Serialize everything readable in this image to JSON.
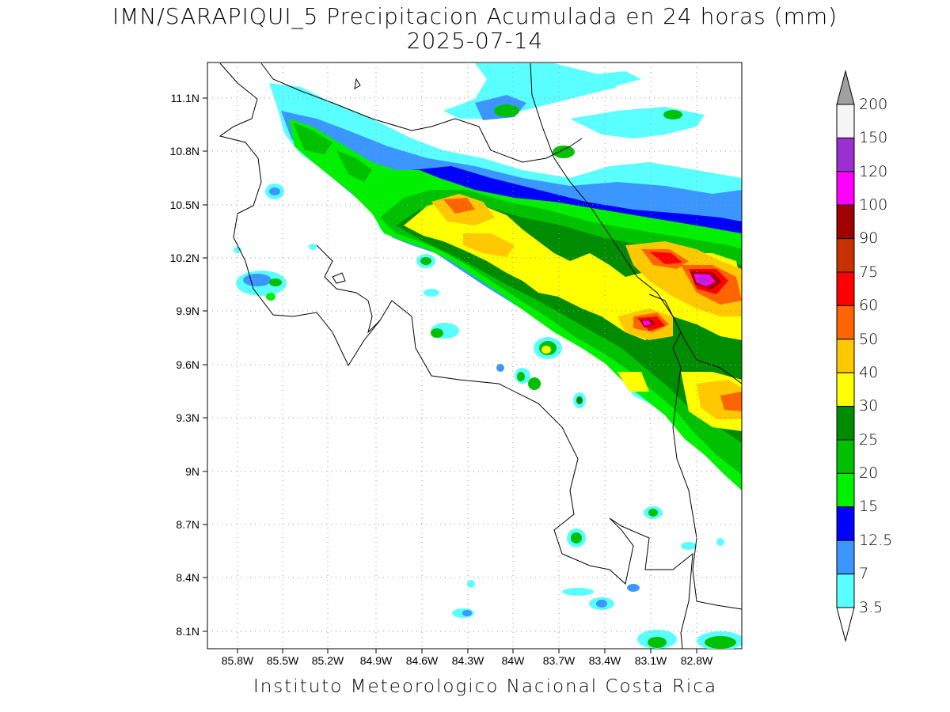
{
  "title": {
    "line1": "IMN/SARAPIQUI_5 Precipitacion Acumulada en 24 horas (mm)",
    "line2": "2025-07-14"
  },
  "footer": "Instituto Meteorologico Nacional Costa Rica",
  "axes": {
    "lat_labels": [
      "11.1N",
      "10.8N",
      "10.5N",
      "10.2N",
      "9.9N",
      "9.6N",
      "9.3N",
      "9N",
      "8.7N",
      "8.4N",
      "8.1N"
    ],
    "lon_labels": [
      "85.8W",
      "85.5W",
      "85.2W",
      "84.9W",
      "84.6W",
      "84.3W",
      "84W",
      "83.7W",
      "83.4W",
      "83.1W",
      "82.8W"
    ]
  },
  "colorbar": {
    "labels": [
      "200",
      "150",
      "120",
      "100",
      "90",
      "75",
      "60",
      "50",
      "40",
      "30",
      "25",
      "20",
      "15",
      "12.5",
      "7",
      "3.5"
    ],
    "colors": [
      "#a0a0a0",
      "#f5f5f5",
      "#9b30d0",
      "#ff00ff",
      "#a00000",
      "#c83200",
      "#ff0000",
      "#ff6400",
      "#ffc800",
      "#ffff00",
      "#008c00",
      "#00c000",
      "#00f000",
      "#0000ff",
      "#3c96ff",
      "#5affff"
    ]
  }
}
